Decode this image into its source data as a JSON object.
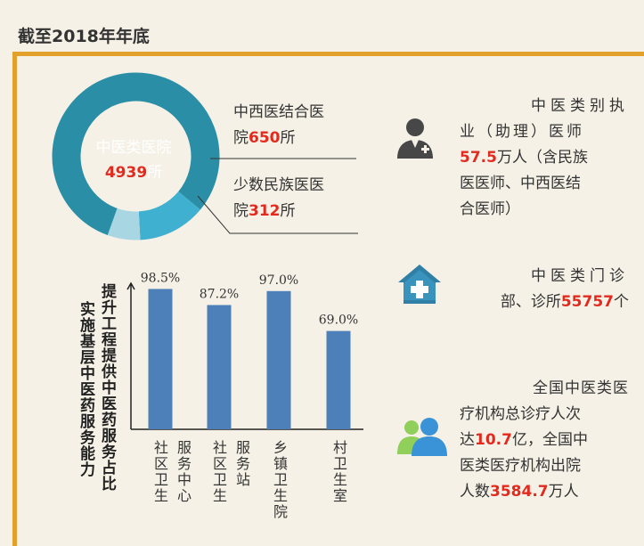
{
  "header": {
    "title": "截至2018年年底"
  },
  "donut": {
    "center_label": "中医类医院",
    "center_value": "4939",
    "center_unit": "所",
    "seg1_line1": "中西医结合医",
    "seg1_line2a": "院",
    "seg1_value": "650",
    "seg1_unit": "所",
    "seg2_line1": "少数民族医医",
    "seg2_line2a": "院",
    "seg2_value": "312",
    "seg2_unit": "所",
    "total": 4939,
    "segments": [
      {
        "value": 650,
        "color": "#3fb0cf"
      },
      {
        "value": 312,
        "color": "#a8d6e2"
      }
    ],
    "main_color": "#2a8fa6"
  },
  "stats": {
    "doctors": {
      "line1": "中医类别执",
      "line2": "业（助理）医师",
      "value": "57.5",
      "line3_rest": "万人（含民族",
      "line4": "医医师、中西医结",
      "line5": "合医师）"
    },
    "clinics": {
      "line1": "中医类门诊",
      "line2a": "部、诊所",
      "value": "55757",
      "unit": "个"
    },
    "visits": {
      "line1": "全国中医类医",
      "line2": "疗机构总诊疗人次",
      "line3a": "达",
      "value1": "10.7",
      "line3b": "亿，全国中",
      "line4": "医类医疗机构出院",
      "line5a": "人数",
      "value2": "3584.7",
      "line5b": "万人"
    }
  },
  "bar_chart": {
    "title_right": "提升工程提供中医药服务占比",
    "title_left": "实施基层中医药服务能力"
  },
  "chart_data": {
    "type": "bar",
    "title": "实施基层中医药服务能力提升工程提供中医药服务占比",
    "categories": [
      "社区卫生服务中心",
      "社区卫生服务站",
      "乡镇卫生院",
      "村卫生室"
    ],
    "category_col1": [
      "社区卫生",
      "社区卫生",
      "乡镇卫生院",
      "村卫生室"
    ],
    "category_col2": [
      "服务中心",
      "服务站",
      "",
      ""
    ],
    "values": [
      98.5,
      87.2,
      97.0,
      69.0
    ],
    "value_labels": [
      "98.5%",
      "87.2%",
      "97.0%",
      "69.0%"
    ],
    "ylim": [
      0,
      100
    ],
    "bar_color": "#4d80b8"
  },
  "colors": {
    "accent": "#e2a12a",
    "highlight": "#e22a1f",
    "icon": "#2f7fa6",
    "icon_dark": "#474747"
  }
}
